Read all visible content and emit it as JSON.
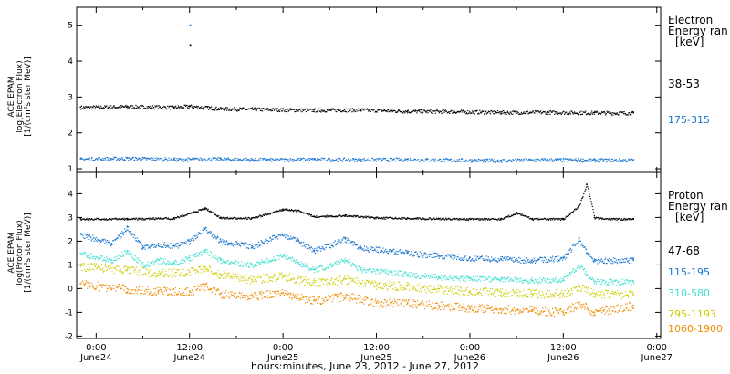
{
  "title": "",
  "footer_label": "hours:minutes, June 23, 2012 - June 27, 2012",
  "x_tick_times": [
    "0:00",
    "12:00",
    "0:00",
    "12:00",
    "0:00",
    "12:00",
    "0:00"
  ],
  "x_tick_dates": [
    "June24",
    "June24",
    "June25",
    "June25",
    "June26",
    "June26",
    "June27"
  ],
  "panels": [
    {
      "ylabel_lines": [
        "ACE EPAM",
        "log(Electron Flux)",
        "[1/(cm²s ster MeV)]"
      ],
      "legend_title_lines": [
        "Electron",
        "Energy ran",
        "[keV]"
      ],
      "bands": [
        {
          "label": "38-53",
          "color": "#000000"
        },
        {
          "label": "175-315",
          "color": "#1874cd"
        }
      ]
    },
    {
      "ylabel_lines": [
        "ACE EPAM",
        "log(Proton Flux)",
        "[1/(cm²s ster MeV)]"
      ],
      "legend_title_lines": [
        "Proton",
        "Energy ran",
        "[keV]"
      ],
      "bands": [
        {
          "label": "47-68",
          "color": "#000000"
        },
        {
          "label": "115-195",
          "color": "#1874cd"
        },
        {
          "label": "310-580",
          "color": "#40e0d0"
        },
        {
          "label": "795-1193",
          "color": "#cdcd00"
        },
        {
          "label": "1060-1900",
          "color": "#ee8c00"
        }
      ]
    }
  ],
  "chart_data": [
    {
      "type": "scatter",
      "xlabel": "hours:minutes, June 23, 2012 - June 27, 2012",
      "ylabel": "ACE EPAM log(Electron Flux) [1/(cm²s ster MeV)]",
      "x_unit": "hours since 2012-06-24 00:00 UTC",
      "xlim": [
        -2.5,
        72.5
      ],
      "ylim": [
        0.9,
        5.5
      ],
      "y_ticks": [
        1,
        2,
        3,
        4,
        5
      ],
      "series": [
        {
          "name": "38-53",
          "color": "#000000",
          "x": [
            -2,
            4,
            10,
            12,
            16,
            22,
            28,
            34,
            40,
            46,
            52,
            58,
            64,
            69
          ],
          "y": [
            2.72,
            2.74,
            2.72,
            2.75,
            2.68,
            2.66,
            2.64,
            2.65,
            2.61,
            2.6,
            2.58,
            2.58,
            2.57,
            2.56
          ]
        },
        {
          "name": "175-315",
          "color": "#1874cd",
          "x": [
            -2,
            4,
            10,
            16,
            22,
            28,
            34,
            40,
            46,
            52,
            58,
            64,
            69
          ],
          "y": [
            1.28,
            1.3,
            1.27,
            1.28,
            1.26,
            1.27,
            1.26,
            1.27,
            1.25,
            1.24,
            1.26,
            1.25,
            1.25
          ]
        }
      ],
      "outliers": [
        {
          "x": 12.1,
          "y": 5.0
        },
        {
          "x": 12.1,
          "y": 4.45
        }
      ]
    },
    {
      "type": "scatter",
      "xlabel": "hours:minutes, June 23, 2012 - June 27, 2012",
      "ylabel": "ACE EPAM log(Proton Flux) [1/(cm²s ster MeV)]",
      "x_unit": "hours since 2012-06-24 00:00 UTC",
      "xlim": [
        -2.5,
        72.5
      ],
      "ylim": [
        -2.1,
        4.9
      ],
      "y_ticks": [
        -2,
        -1,
        0,
        1,
        2,
        3,
        4
      ],
      "series": [
        {
          "name": "47-68",
          "color": "#000000",
          "x": [
            -2,
            4,
            10,
            14,
            16,
            20,
            24,
            26,
            28,
            32,
            36,
            40,
            44,
            48,
            52,
            54,
            56,
            60,
            62,
            63,
            64,
            66,
            69
          ],
          "y": [
            2.95,
            2.95,
            2.98,
            3.4,
            3.0,
            2.98,
            3.35,
            3.3,
            3.05,
            3.1,
            3.0,
            2.98,
            2.96,
            2.95,
            2.95,
            3.2,
            2.95,
            2.95,
            3.5,
            4.4,
            3.0,
            2.95,
            2.95
          ]
        },
        {
          "name": "115-195",
          "color": "#1874cd",
          "x": [
            -2,
            2,
            4,
            6,
            8,
            10,
            12,
            14,
            16,
            20,
            24,
            26,
            28,
            32,
            34,
            38,
            40,
            44,
            48,
            52,
            56,
            60,
            62,
            63,
            64,
            66,
            69
          ],
          "y": [
            2.3,
            1.9,
            2.6,
            1.7,
            1.9,
            1.8,
            2.0,
            2.5,
            2.0,
            1.8,
            2.3,
            2.0,
            1.6,
            2.1,
            1.7,
            1.6,
            1.5,
            1.4,
            1.3,
            1.25,
            1.2,
            1.3,
            2.1,
            1.5,
            1.2,
            1.2,
            1.2
          ]
        },
        {
          "name": "310-580",
          "color": "#40e0d0",
          "x": [
            -2,
            2,
            4,
            6,
            8,
            10,
            12,
            14,
            16,
            20,
            24,
            26,
            28,
            32,
            34,
            38,
            40,
            44,
            48,
            52,
            56,
            60,
            62,
            63,
            64,
            66,
            69
          ],
          "y": [
            1.5,
            1.2,
            1.6,
            1.0,
            1.2,
            1.1,
            1.3,
            1.6,
            1.2,
            1.0,
            1.4,
            1.1,
            0.8,
            1.2,
            0.8,
            0.7,
            0.6,
            0.5,
            0.45,
            0.4,
            0.35,
            0.4,
            1.0,
            0.6,
            0.3,
            0.3,
            0.3
          ]
        },
        {
          "name": "795-1193",
          "color": "#cdcd00",
          "x": [
            -2,
            4,
            8,
            12,
            14,
            16,
            20,
            24,
            28,
            32,
            36,
            40,
            44,
            48,
            52,
            56,
            60,
            62,
            64,
            69
          ],
          "y": [
            0.95,
            0.8,
            0.65,
            0.7,
            0.9,
            0.6,
            0.4,
            0.55,
            0.25,
            0.4,
            0.15,
            0.1,
            0.0,
            -0.1,
            -0.15,
            -0.2,
            -0.2,
            0.1,
            -0.2,
            -0.25
          ]
        },
        {
          "name": "1060-1900",
          "color": "#ee8c00",
          "x": [
            -2,
            4,
            8,
            12,
            14,
            16,
            20,
            24,
            28,
            32,
            36,
            40,
            44,
            48,
            52,
            56,
            60,
            62,
            64,
            69
          ],
          "y": [
            0.2,
            0.0,
            -0.1,
            -0.1,
            0.1,
            -0.2,
            -0.3,
            -0.2,
            -0.5,
            -0.3,
            -0.6,
            -0.6,
            -0.7,
            -0.8,
            -0.85,
            -0.9,
            -1.0,
            -0.6,
            -1.0,
            -0.7
          ]
        }
      ]
    }
  ]
}
